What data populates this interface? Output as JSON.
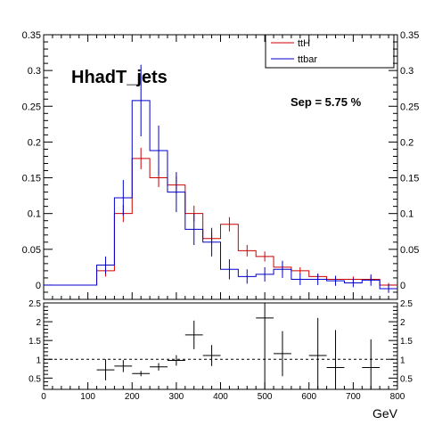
{
  "chart_data": [
    {
      "type": "line",
      "title": "HhadT_jets",
      "annotation": "Sep = 5.75 %",
      "xlabel": "GeV",
      "ylabel": "",
      "xlim": [
        0,
        800
      ],
      "ylim": [
        -0.02,
        0.35
      ],
      "grid": false,
      "legend_position": "top-right",
      "yticks": [
        "0",
        "0.05",
        "0.1",
        "0.15",
        "0.2",
        "0.25",
        "0.3",
        "0.35"
      ],
      "yticks_right": [
        "0",
        "0.05",
        "0.1",
        "0.15",
        "0.2",
        "0.25",
        "0.3",
        "0.35"
      ],
      "bin_edges": [
        0,
        40,
        80,
        120,
        160,
        200,
        240,
        280,
        320,
        360,
        400,
        440,
        480,
        520,
        560,
        600,
        640,
        680,
        720,
        760,
        800
      ],
      "series": [
        {
          "name": "ttH",
          "color": "#cc0000",
          "values": [
            0.0,
            0.0,
            0.0,
            0.02,
            0.1,
            0.177,
            0.15,
            0.14,
            0.1,
            0.065,
            0.085,
            0.048,
            0.04,
            0.025,
            0.02,
            0.012,
            0.008,
            0.008,
            0.008,
            0.0
          ],
          "errors": [
            0,
            0,
            0,
            0.008,
            0.012,
            0.015,
            0.013,
            0.012,
            0.011,
            0.009,
            0.01,
            0.008,
            0.007,
            0.006,
            0.005,
            0.004,
            0.004,
            0.004,
            0.004,
            0.003
          ]
        },
        {
          "name": "ttbar",
          "color": "#0000cc",
          "values": [
            0.0,
            0.0,
            0.0,
            0.028,
            0.122,
            0.258,
            0.188,
            0.13,
            0.078,
            0.06,
            0.022,
            0.012,
            0.015,
            0.022,
            0.008,
            0.008,
            0.006,
            0.003,
            0.007,
            -0.005
          ],
          "errors": [
            0,
            0,
            0,
            0.012,
            0.025,
            0.05,
            0.035,
            0.028,
            0.022,
            0.02,
            0.014,
            0.01,
            0.01,
            0.012,
            0.008,
            0.008,
            0.007,
            0.006,
            0.008,
            0.006
          ]
        }
      ]
    },
    {
      "type": "scatter",
      "title": "",
      "xlabel": "GeV",
      "ylabel": "",
      "xlim": [
        0,
        800
      ],
      "ylim": [
        0.2,
        2.5
      ],
      "reference_line": 1,
      "xticks": [
        "0",
        "100",
        "200",
        "300",
        "400",
        "500",
        "600",
        "700",
        "800"
      ],
      "yticks": [
        "0.5",
        "1",
        "1.5",
        "2",
        "2.5"
      ],
      "yticks_right": [
        "0.5",
        "1",
        "1.5",
        "2",
        "2.5"
      ],
      "points": [
        {
          "x": 140,
          "y": 0.72,
          "xerr": 20,
          "yerr": 0.28
        },
        {
          "x": 180,
          "y": 0.82,
          "xerr": 20,
          "yerr": 0.16
        },
        {
          "x": 220,
          "y": 0.62,
          "xerr": 20,
          "yerr": 0.07
        },
        {
          "x": 260,
          "y": 0.8,
          "xerr": 20,
          "yerr": 0.1
        },
        {
          "x": 300,
          "y": 0.97,
          "xerr": 20,
          "yerr": 0.14
        },
        {
          "x": 340,
          "y": 1.65,
          "xerr": 20,
          "yerr": 0.38
        },
        {
          "x": 380,
          "y": 1.1,
          "xerr": 20,
          "yerr": 0.28
        },
        {
          "x": 500,
          "y": 2.1,
          "xerr": 20,
          "yerr": 1.9
        },
        {
          "x": 540,
          "y": 1.15,
          "xerr": 20,
          "yerr": 0.6
        },
        {
          "x": 620,
          "y": 1.1,
          "xerr": 20,
          "yerr": 1.0
        },
        {
          "x": 660,
          "y": 0.78,
          "xerr": 20,
          "yerr": 1.0
        },
        {
          "x": 740,
          "y": 0.78,
          "xerr": 20,
          "yerr": 0.75
        }
      ]
    }
  ]
}
